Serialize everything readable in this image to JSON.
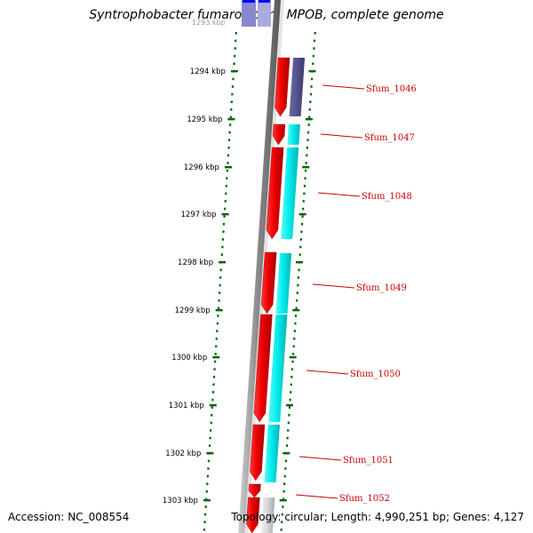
{
  "title": "Syntrophobacter fumaroxidans MPOB, complete genome",
  "footer": {
    "accession": "Accession: NC_008554",
    "summary": "Topology: circular; Length: 4,990,251 bp; Genes: 4,127"
  },
  "colors": {
    "forward": "#ee0000",
    "reverse": "#00eeee",
    "highlight": "#55558f",
    "backbone": "#777777",
    "scale": "#006600",
    "label": "#cc0000",
    "top_blue": "#0000ff"
  },
  "scale": {
    "unit": "kbp",
    "ticks": [
      {
        "label": "1294 kbp"
      },
      {
        "label": "1295 kbp"
      },
      {
        "label": "1296 kbp"
      },
      {
        "label": "1297 kbp"
      },
      {
        "label": "1298 kbp"
      },
      {
        "label": "1299 kbp"
      },
      {
        "label": "1300 kbp"
      },
      {
        "label": "1301 kbp"
      },
      {
        "label": "1302 kbp"
      },
      {
        "label": "1303 kbp"
      }
    ]
  },
  "genes": [
    {
      "label": "Sfum_1046"
    },
    {
      "label": "Sfum_1047"
    },
    {
      "label": "Sfum_1048"
    },
    {
      "label": "Sfum_1049"
    },
    {
      "label": "Sfum_1050"
    },
    {
      "label": "Sfum_1051"
    },
    {
      "label": "Sfum_1052"
    }
  ]
}
